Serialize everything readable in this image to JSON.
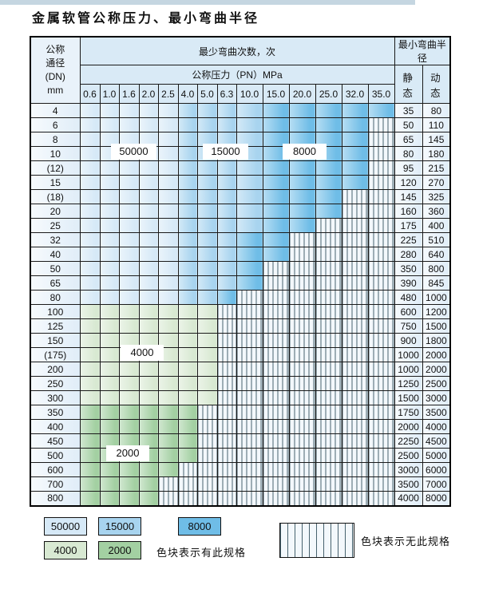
{
  "page": {
    "title": "金属软管公称压力、最小弯曲半径"
  },
  "table": {
    "dn_header_lines": [
      "公称",
      "通径",
      "(DN)",
      "mm"
    ],
    "cycles_header": "最少弯曲次数，次",
    "pressure_header": "公称压力（PN）MPa",
    "radius_header": "最小弯曲半径",
    "static_label": "静 态",
    "dynamic_label": "动 态",
    "pressures": [
      "0.6",
      "1.0",
      "1.6",
      "2.0",
      "2.5",
      "4.0",
      "5.0",
      "6.3",
      "10.0",
      "15.0",
      "20.0",
      "25.0",
      "32.0",
      "35.0"
    ],
    "rows": [
      {
        "dn": "4",
        "band": "blue",
        "colored": 14,
        "dark_from": 9,
        "static": "35",
        "dynamic": "80"
      },
      {
        "dn": "6",
        "band": "blue",
        "colored": 13,
        "dark_from": 9,
        "static": "50",
        "dynamic": "110"
      },
      {
        "dn": "8",
        "band": "blue",
        "colored": 13,
        "dark_from": 9,
        "static": "65",
        "dynamic": "145"
      },
      {
        "dn": "10",
        "band": "blue",
        "colored": 13,
        "dark_from": 9,
        "static": "80",
        "dynamic": "180"
      },
      {
        "dn": "(12)",
        "band": "blue",
        "colored": 13,
        "dark_from": 9,
        "static": "95",
        "dynamic": "215"
      },
      {
        "dn": "15",
        "band": "blue",
        "colored": 13,
        "dark_from": 9,
        "static": "120",
        "dynamic": "270"
      },
      {
        "dn": "(18)",
        "band": "blue",
        "colored": 12,
        "dark_from": 9,
        "static": "145",
        "dynamic": "325"
      },
      {
        "dn": "20",
        "band": "blue",
        "colored": 12,
        "dark_from": 9,
        "static": "160",
        "dynamic": "360"
      },
      {
        "dn": "25",
        "band": "blue",
        "colored": 11,
        "dark_from": 9,
        "static": "175",
        "dynamic": "400"
      },
      {
        "dn": "32",
        "band": "blue",
        "colored": 10,
        "dark_from": 8,
        "static": "225",
        "dynamic": "510"
      },
      {
        "dn": "40",
        "band": "blue",
        "colored": 10,
        "dark_from": 8,
        "static": "280",
        "dynamic": "640"
      },
      {
        "dn": "50",
        "band": "blue",
        "colored": 9,
        "dark_from": 8,
        "static": "350",
        "dynamic": "800"
      },
      {
        "dn": "65",
        "band": "blue",
        "colored": 9,
        "dark_from": 8,
        "static": "390",
        "dynamic": "845"
      },
      {
        "dn": "80",
        "band": "blue",
        "colored": 8,
        "dark_from": 7,
        "static": "480",
        "dynamic": "1000"
      },
      {
        "dn": "100",
        "band": "g4",
        "colored": 7,
        "dark_from": null,
        "static": "600",
        "dynamic": "1200"
      },
      {
        "dn": "125",
        "band": "g4",
        "colored": 7,
        "dark_from": null,
        "static": "750",
        "dynamic": "1500"
      },
      {
        "dn": "150",
        "band": "g4",
        "colored": 7,
        "dark_from": null,
        "static": "900",
        "dynamic": "1800"
      },
      {
        "dn": "(175)",
        "band": "g4",
        "colored": 7,
        "dark_from": null,
        "static": "1000",
        "dynamic": "2000"
      },
      {
        "dn": "200",
        "band": "g4",
        "colored": 7,
        "dark_from": null,
        "static": "1000",
        "dynamic": "2000"
      },
      {
        "dn": "250",
        "band": "g4",
        "colored": 7,
        "dark_from": null,
        "static": "1250",
        "dynamic": "2500"
      },
      {
        "dn": "300",
        "band": "g4",
        "colored": 7,
        "dark_from": null,
        "static": "1500",
        "dynamic": "3000"
      },
      {
        "dn": "350",
        "band": "g2",
        "colored": 6,
        "dark_from": null,
        "static": "1750",
        "dynamic": "3500"
      },
      {
        "dn": "400",
        "band": "g2",
        "colored": 6,
        "dark_from": null,
        "static": "2000",
        "dynamic": "4000"
      },
      {
        "dn": "450",
        "band": "g2",
        "colored": 6,
        "dark_from": null,
        "static": "2250",
        "dynamic": "4500"
      },
      {
        "dn": "500",
        "band": "g2",
        "colored": 6,
        "dark_from": null,
        "static": "2500",
        "dynamic": "5000"
      },
      {
        "dn": "600",
        "band": "g2",
        "colored": 5,
        "dark_from": null,
        "static": "3000",
        "dynamic": "6000"
      },
      {
        "dn": "700",
        "band": "g2",
        "colored": 4,
        "dark_from": null,
        "static": "3500",
        "dynamic": "7000"
      },
      {
        "dn": "800",
        "band": "g2",
        "colored": 4,
        "dark_from": null,
        "static": "4000",
        "dynamic": "8000"
      }
    ]
  },
  "zone_labels": {
    "v50000": "50000",
    "v15000": "15000",
    "v8000": "8000",
    "v4000": "4000",
    "v2000": "2000"
  },
  "legend": {
    "items": [
      {
        "value": "50000",
        "color": "#d6e9f7"
      },
      {
        "value": "15000",
        "color": "#a8d4ef"
      },
      {
        "value": "8000",
        "color": "#6fbde7"
      },
      {
        "value": "4000",
        "color": "#d8e9d2"
      },
      {
        "value": "2000",
        "color": "#a3d0a2"
      }
    ],
    "has_spec_note": "色块表示有此规格",
    "no_spec_note": "色块表示无此规格",
    "hatch_line_color": "#47626e"
  }
}
